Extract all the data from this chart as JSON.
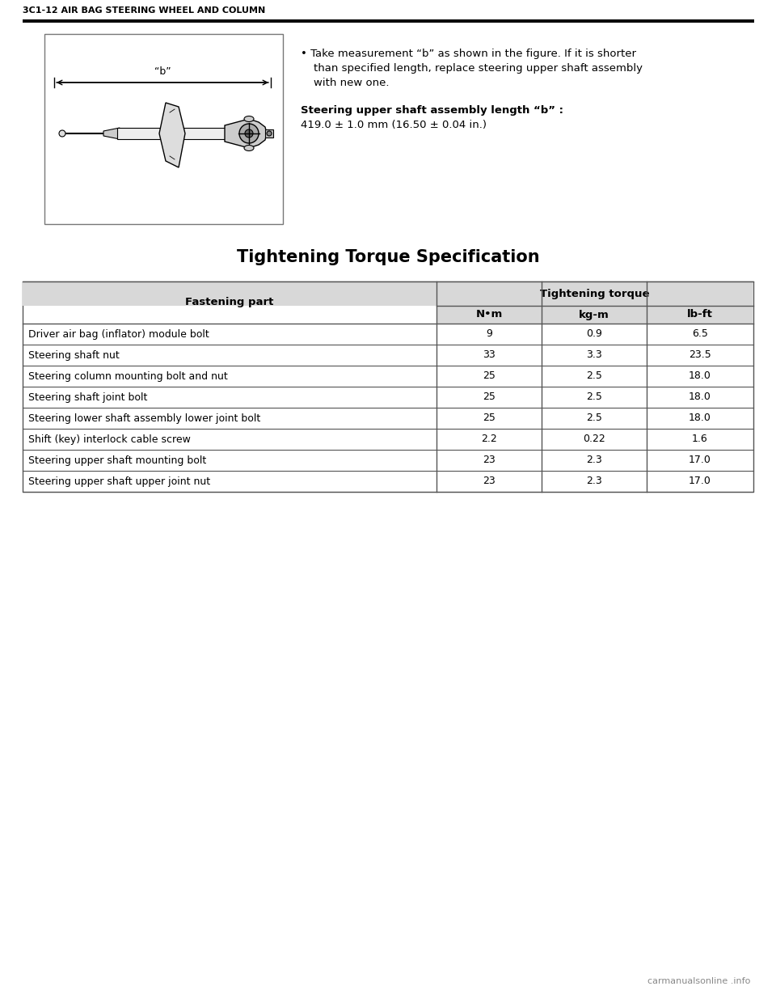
{
  "header_text": "3C1-12 AIR BAG STEERING WHEEL AND COLUMN",
  "page_title": "Tightening Torque Specification",
  "bullet_line1": "• Take measurement “b” as shown in the figure. If it is shorter",
  "bullet_line2": "than specified length, replace steering upper shaft assembly",
  "bullet_line3": "with new one.",
  "spec_label": "Steering upper shaft assembly length “b” :",
  "spec_value": "419.0 ± 1.0 mm (16.50 ± 0.04 in.)",
  "table_col_headers": [
    "Fastening part",
    "N•m",
    "kg-m",
    "lb-ft"
  ],
  "table_group_header": "Tightening torque",
  "table_rows": [
    [
      "Driver air bag (inflator) module bolt",
      "9",
      "0.9",
      "6.5"
    ],
    [
      "Steering shaft nut",
      "33",
      "3.3",
      "23.5"
    ],
    [
      "Steering column mounting bolt and nut",
      "25",
      "2.5",
      "18.0"
    ],
    [
      "Steering shaft joint bolt",
      "25",
      "2.5",
      "18.0"
    ],
    [
      "Steering lower shaft assembly lower joint bolt",
      "25",
      "2.5",
      "18.0"
    ],
    [
      "Shift (key) interlock cable screw",
      "2.2",
      "0.22",
      "1.6"
    ],
    [
      "Steering upper shaft mounting bolt",
      "23",
      "2.3",
      "17.0"
    ],
    [
      "Steering upper shaft upper joint nut",
      "23",
      "2.3",
      "17.0"
    ]
  ],
  "bg_color": "#ffffff",
  "text_color": "#000000",
  "header_bar_color": "#000000",
  "table_border_color": "#555555",
  "table_header_bg": "#d8d8d8",
  "watermark_text": "carmanualsonline .info"
}
